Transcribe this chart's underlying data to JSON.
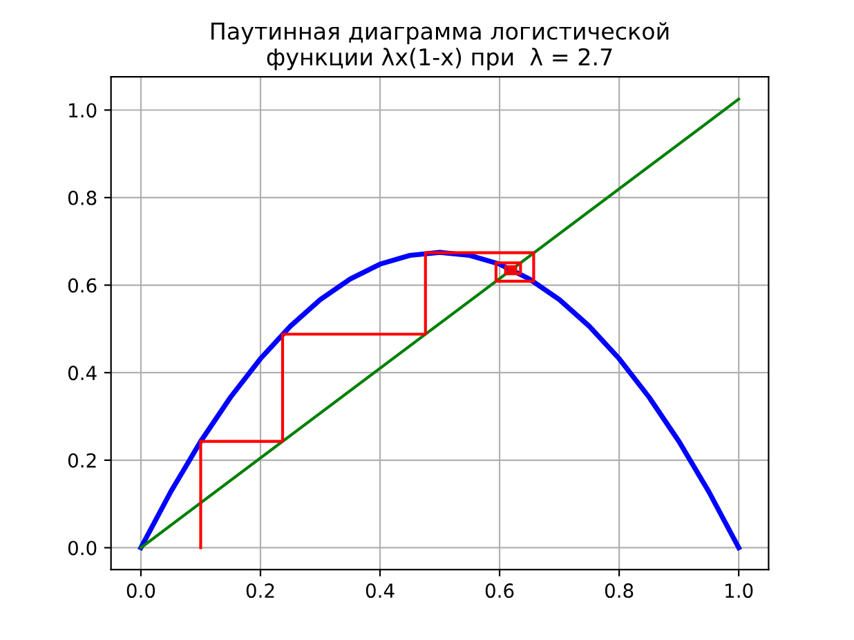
{
  "chart_data": {
    "type": "line",
    "title": "Паутинная диаграмма логистической\nфункции λx(1-x) при  λ = 2.7",
    "series": [
      {
        "color": "#0000ff",
        "x": [
          0,
          0.05,
          0.1,
          0.15,
          0.2,
          0.25,
          0.3,
          0.35,
          0.4,
          0.45,
          0.5,
          0.55,
          0.6,
          0.65,
          0.7,
          0.75,
          0.8,
          0.85,
          0.9,
          0.95,
          1
        ],
        "values": [
          0,
          0.128,
          0.243,
          0.344,
          0.432,
          0.506,
          0.567,
          0.614,
          0.648,
          0.668,
          0.675,
          0.668,
          0.648,
          0.614,
          0.567,
          0.506,
          0.432,
          0.344,
          0.243,
          0.128,
          0
        ]
      },
      {
        "color": "#008000",
        "x": [
          0,
          1
        ],
        "values": [
          0,
          1.025
        ]
      },
      {
        "color": "#ff0000",
        "x": [
          0.1,
          0.1,
          0.237,
          0.237,
          0.476,
          0.476,
          0.657,
          0.657,
          0.594,
          0.594,
          0.635,
          0.635,
          0.61,
          0.61,
          0.627,
          0.627,
          0.616,
          0.616,
          0.623
        ],
        "values": [
          0,
          0.243,
          0.243,
          0.488,
          0.488,
          0.674,
          0.674,
          0.609,
          0.609,
          0.651,
          0.651,
          0.626,
          0.626,
          0.642,
          0.642,
          0.632,
          0.632,
          0.639,
          0.639
        ]
      }
    ],
    "xlim": [
      -0.05,
      1.05
    ],
    "ylim": [
      -0.05,
      1.076
    ],
    "xticks": [
      {
        "value": 0,
        "label": "0.0"
      },
      0.2,
      0.4,
      0.6,
      0.8,
      {
        "value": 1,
        "label": "1.0"
      }
    ],
    "yticks": [
      {
        "value": 0,
        "label": "0.0"
      },
      0.2,
      0.4,
      0.6,
      0.8,
      {
        "value": 1,
        "label": "1.0"
      }
    ],
    "grid": true,
    "legend": false,
    "marker": "none",
    "line_style": "solid"
  }
}
